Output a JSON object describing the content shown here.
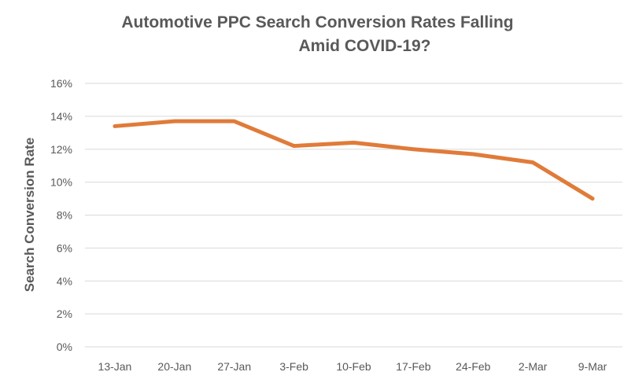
{
  "chart_data": {
    "type": "line",
    "title": [
      "Automotive PPC Search Conversion Rates Falling",
      "Amid COVID-19?"
    ],
    "xlabel": "",
    "ylabel": "Search Conversion Rate",
    "categories": [
      "13-Jan",
      "20-Jan",
      "27-Jan",
      "3-Feb",
      "10-Feb",
      "17-Feb",
      "24-Feb",
      "2-Mar",
      "9-Mar"
    ],
    "series": [
      {
        "name": "Search Conversion Rate",
        "values": [
          13.4,
          13.7,
          13.7,
          12.2,
          12.4,
          12.0,
          11.7,
          11.2,
          9.0
        ],
        "color": "#E07B39"
      }
    ],
    "ylim": [
      0,
      16
    ],
    "yticks": [
      0,
      2,
      4,
      6,
      8,
      10,
      12,
      14,
      16
    ],
    "ytick_format": "%",
    "grid": true,
    "legend": "none"
  }
}
